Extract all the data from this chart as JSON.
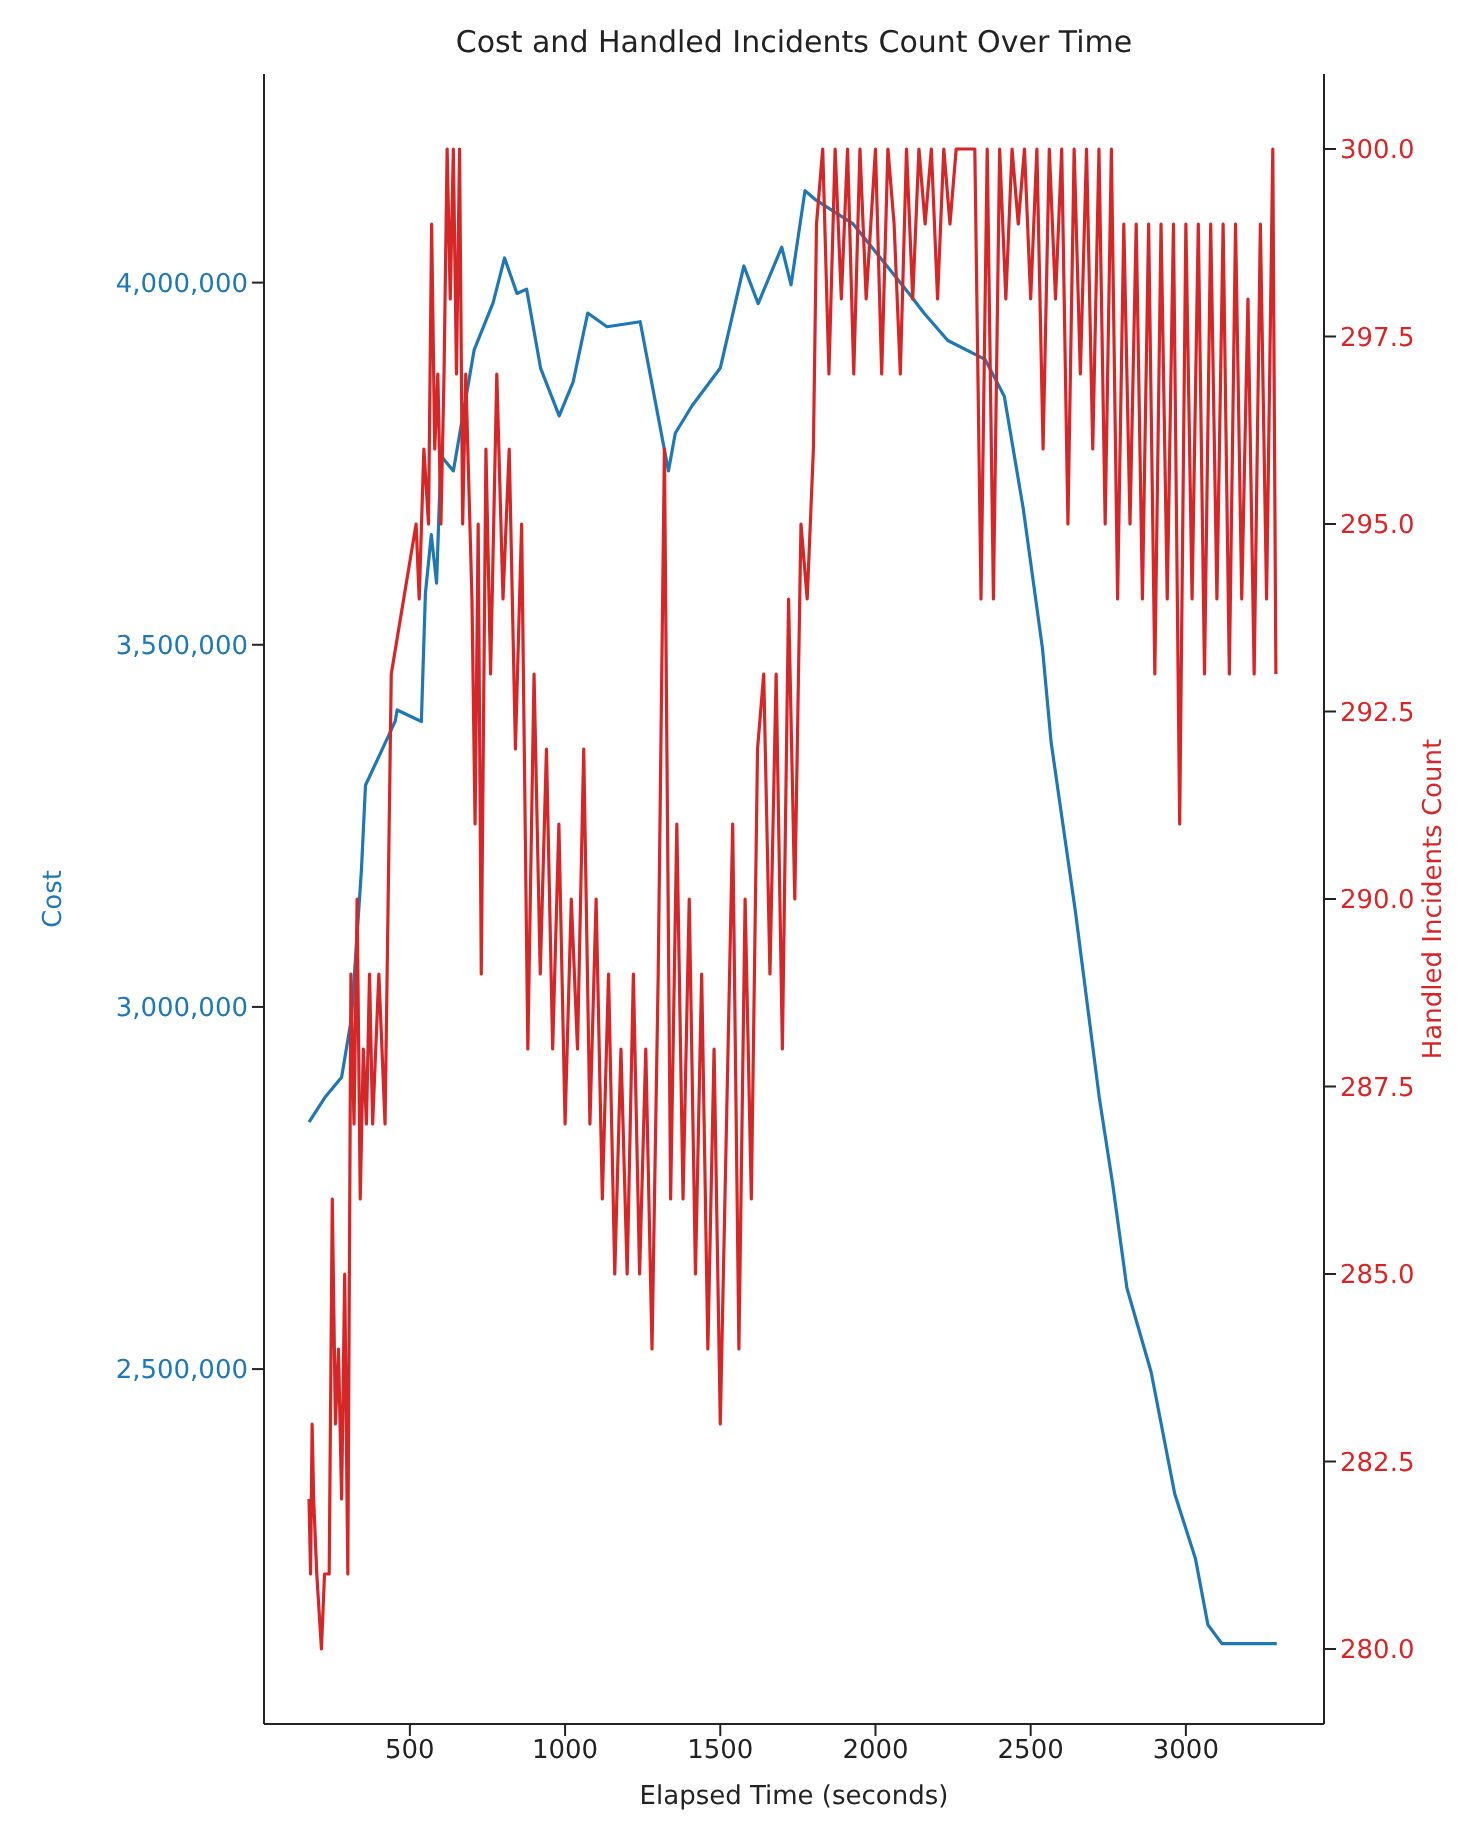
{
  "chart_data": {
    "type": "line",
    "title": "Cost and Handled Incidents Count Over Time",
    "xlabel": "Elapsed Time (seconds)",
    "ylabel": "Cost",
    "y2label": "Handled Incidents Count",
    "marker": "none",
    "line_style": "solid",
    "xlim": [
      30,
      3445
    ],
    "xticks": [
      500,
      1000,
      1500,
      2000,
      2500,
      3000
    ],
    "ylim": [
      2010000,
      4288000
    ],
    "yticks": [
      {
        "value": 2500000,
        "label": "2,500,000"
      },
      {
        "value": 3000000,
        "label": "3,000,000"
      },
      {
        "value": 3500000,
        "label": "3,500,000"
      },
      {
        "value": 4000000,
        "label": "4,000,000"
      }
    ],
    "y2lim": [
      279,
      301
    ],
    "y2ticks": [
      {
        "value": 280,
        "label": "280.0"
      },
      {
        "value": 282.5,
        "label": "282.5"
      },
      {
        "value": 285,
        "label": "285.0"
      },
      {
        "value": 287.5,
        "label": "287.5"
      },
      {
        "value": 290,
        "label": "290.0"
      },
      {
        "value": 292.5,
        "label": "292.5"
      },
      {
        "value": 295,
        "label": "295.0"
      },
      {
        "value": 297.5,
        "label": "297.5"
      },
      {
        "value": 300,
        "label": "300.0"
      }
    ],
    "series": [
      {
        "color": "#1f77b4",
        "x": [
          175,
          228,
          280,
          312,
          344,
          357,
          434,
          453,
          459,
          537,
          550,
          569,
          586,
          600,
          640,
          707,
          768,
          805,
          845,
          876,
          921,
          981,
          1026,
          1073,
          1135,
          1242,
          1287,
          1333,
          1355,
          1409,
          1500,
          1576,
          1622,
          1698,
          1728,
          1773,
          1805,
          1928,
          2108,
          2156,
          2233,
          2353,
          2415,
          2476,
          2538,
          2566,
          2644,
          2721,
          2765,
          2810,
          2888,
          2964,
          3031,
          3071,
          3116,
          3200,
          3293
        ],
        "values": [
          2841000,
          2876000,
          2903000,
          2985000,
          3190000,
          3306000,
          3377000,
          3395000,
          3410000,
          3394000,
          3571000,
          3652000,
          3585000,
          3761000,
          3740000,
          3907000,
          3972000,
          4034000,
          3985000,
          3991000,
          3882000,
          3816000,
          3863000,
          3958000,
          3939000,
          3946000,
          3844000,
          3740000,
          3792000,
          3830000,
          3882000,
          4023000,
          3971000,
          4049000,
          3997000,
          4127000,
          4115000,
          4081000,
          3985000,
          3958000,
          3920000,
          3894000,
          3843000,
          3688000,
          3495000,
          3365000,
          3132000,
          2875000,
          2753000,
          2612000,
          2496000,
          2328000,
          2238000,
          2147000,
          2121000,
          2121000,
          2121000
        ]
      },
      {
        "color": "#d62728",
        "axis": "y2",
        "x": [
          175,
          180,
          185,
          190,
          200,
          215,
          225,
          240,
          250,
          260,
          270,
          280,
          290,
          300,
          310,
          320,
          330,
          340,
          350,
          360,
          370,
          380,
          400,
          420,
          440,
          520,
          530,
          545,
          560,
          570,
          580,
          590,
          600,
          610,
          620,
          630,
          640,
          650,
          660,
          670,
          680,
          700,
          710,
          720,
          730,
          745,
          760,
          780,
          800,
          820,
          840,
          860,
          880,
          900,
          920,
          940,
          960,
          980,
          1000,
          1020,
          1040,
          1060,
          1080,
          1100,
          1120,
          1140,
          1160,
          1180,
          1200,
          1220,
          1240,
          1260,
          1280,
          1300,
          1320,
          1340,
          1360,
          1380,
          1400,
          1420,
          1440,
          1460,
          1480,
          1500,
          1520,
          1540,
          1560,
          1580,
          1600,
          1620,
          1640,
          1660,
          1680,
          1700,
          1720,
          1740,
          1760,
          1780,
          1800,
          1810,
          1830,
          1850,
          1870,
          1890,
          1910,
          1930,
          1950,
          1970,
          2000,
          2020,
          2040,
          2060,
          2080,
          2100,
          2120,
          2140,
          2160,
          2180,
          2200,
          2220,
          2240,
          2260,
          2280,
          2300,
          2320,
          2340,
          2360,
          2380,
          2400,
          2420,
          2440,
          2460,
          2480,
          2500,
          2520,
          2540,
          2560,
          2580,
          2600,
          2620,
          2640,
          2660,
          2680,
          2700,
          2720,
          2740,
          2760,
          2780,
          2800,
          2820,
          2840,
          2860,
          2880,
          2900,
          2920,
          2940,
          2960,
          2980,
          3000,
          3020,
          3040,
          3060,
          3080,
          3100,
          3120,
          3140,
          3160,
          3180,
          3200,
          3220,
          3240,
          3260,
          3280,
          3290
        ],
        "values": [
          282,
          281,
          283,
          282,
          281,
          280,
          281,
          281,
          286,
          283,
          284,
          282,
          285,
          281,
          289,
          287,
          290,
          286,
          288,
          287,
          289,
          287,
          289,
          287,
          293,
          295,
          294,
          296,
          295,
          299,
          296,
          297,
          295,
          297,
          300,
          298,
          300,
          297,
          300,
          295,
          297,
          294,
          291,
          295,
          289,
          296,
          293,
          297,
          294,
          296,
          292,
          295,
          288,
          293,
          289,
          292,
          288,
          291,
          287,
          290,
          288,
          292,
          287,
          290,
          286,
          289,
          285,
          288,
          285,
          289,
          285,
          288,
          284,
          289,
          296,
          286,
          291,
          286,
          290,
          285,
          289,
          284,
          288,
          283,
          287,
          291,
          284,
          290,
          286,
          292,
          293,
          289,
          293,
          288,
          294,
          290,
          295,
          294,
          296,
          299,
          300,
          297,
          300,
          298,
          300,
          297,
          300,
          298,
          300,
          297,
          300,
          299,
          297,
          300,
          298,
          300,
          299,
          300,
          298,
          300,
          299,
          300,
          300,
          300,
          300,
          294,
          300,
          294,
          300,
          298,
          300,
          299,
          300,
          298,
          300,
          296,
          300,
          298,
          300,
          295,
          300,
          297,
          300,
          296,
          300,
          295,
          300,
          294,
          299,
          295,
          299,
          294,
          299,
          293,
          299,
          294,
          299,
          291,
          299,
          294,
          299,
          293,
          299,
          294,
          299,
          293,
          299,
          294,
          298,
          293,
          299,
          294,
          300,
          293
        ]
      }
    ]
  }
}
